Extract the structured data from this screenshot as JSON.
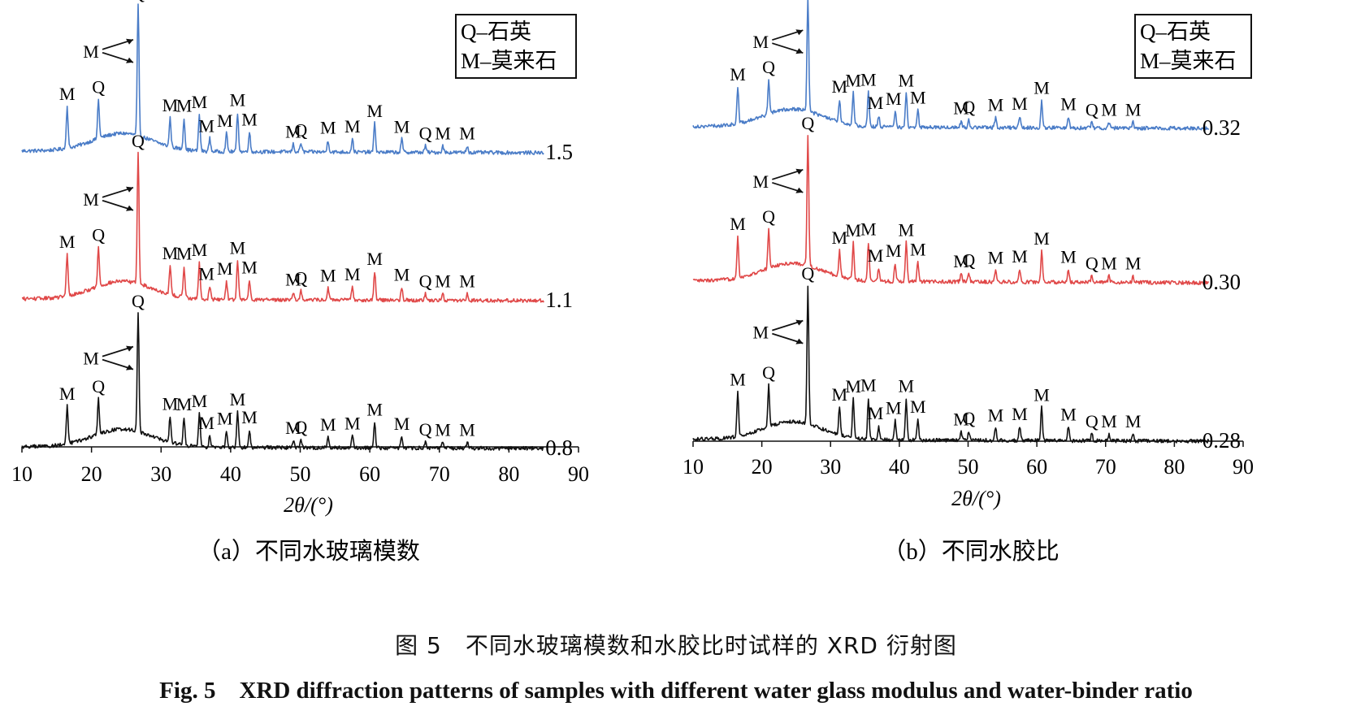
{
  "figure": {
    "caption_zh": "图 5　不同水玻璃模数和水胶比时试样的 XRD 衍射图",
    "caption_en": "Fig. 5　XRD diffraction patterns of samples with different water glass modulus and water-binder ratio"
  },
  "colors": {
    "blue": "#4a7cc7",
    "red": "#e04848",
    "black": "#111111"
  },
  "chart_data": [
    {
      "type": "line",
      "subtitle": "（a）不同水玻璃模数",
      "xlabel": "2θ/(°)",
      "xlim": [
        10,
        90
      ],
      "xticks": [
        "10",
        "20",
        "30",
        "40",
        "50",
        "60",
        "70",
        "80",
        "90"
      ],
      "legend": [
        "Q–石英",
        "M–莫来石"
      ],
      "legend_position": "top-right",
      "series": [
        {
          "name": "1.5",
          "color": "blue"
        },
        {
          "name": "1.1",
          "color": "red"
        },
        {
          "name": "0.8",
          "color": "black"
        }
      ],
      "peaks": [
        {
          "x": 16.5,
          "phase": "M",
          "h": 0.32
        },
        {
          "x": 21.0,
          "phase": "Q",
          "h": 0.3
        },
        {
          "x": 26.7,
          "phase": "Q",
          "h": 1.0
        },
        {
          "x": 31.3,
          "phase": "M",
          "h": 0.22
        },
        {
          "x": 33.3,
          "phase": "M",
          "h": 0.24
        },
        {
          "x": 35.5,
          "phase": "M",
          "h": 0.28
        },
        {
          "x": 37.0,
          "phase": "M",
          "h": 0.1
        },
        {
          "x": 39.4,
          "phase": "M",
          "h": 0.14
        },
        {
          "x": 41.0,
          "phase": "M",
          "h": 0.3
        },
        {
          "x": 42.7,
          "phase": "M",
          "h": 0.15
        },
        {
          "x": 49.0,
          "phase": "M",
          "h": 0.06
        },
        {
          "x": 50.1,
          "phase": "Q",
          "h": 0.07
        },
        {
          "x": 54.0,
          "phase": "M",
          "h": 0.09
        },
        {
          "x": 57.5,
          "phase": "M",
          "h": 0.1
        },
        {
          "x": 60.7,
          "phase": "M",
          "h": 0.22
        },
        {
          "x": 64.6,
          "phase": "M",
          "h": 0.1
        },
        {
          "x": 68.0,
          "phase": "Q",
          "h": 0.05
        },
        {
          "x": 70.5,
          "phase": "M",
          "h": 0.05
        },
        {
          "x": 74.0,
          "phase": "M",
          "h": 0.05
        }
      ],
      "arrow_label": "M"
    },
    {
      "type": "line",
      "subtitle": "（b）不同水胶比",
      "xlabel": "2θ/(°)",
      "xlim": [
        10,
        90
      ],
      "xticks": [
        "10",
        "20",
        "30",
        "40",
        "50",
        "60",
        "70",
        "80",
        "90"
      ],
      "legend": [
        "Q–石英",
        "M–莫来石"
      ],
      "legend_position": "top-right",
      "series": [
        {
          "name": "0.32",
          "color": "blue"
        },
        {
          "name": "0.30",
          "color": "red"
        },
        {
          "name": "0.28",
          "color": "black"
        }
      ],
      "peaks": [
        {
          "x": 16.5,
          "phase": "M",
          "h": 0.32
        },
        {
          "x": 21.0,
          "phase": "Q",
          "h": 0.3
        },
        {
          "x": 26.7,
          "phase": "Q",
          "h": 1.0
        },
        {
          "x": 31.3,
          "phase": "M",
          "h": 0.2
        },
        {
          "x": 33.3,
          "phase": "M",
          "h": 0.28
        },
        {
          "x": 35.5,
          "phase": "M",
          "h": 0.3
        },
        {
          "x": 37.0,
          "phase": "M",
          "h": 0.1
        },
        {
          "x": 39.4,
          "phase": "M",
          "h": 0.14
        },
        {
          "x": 41.0,
          "phase": "M",
          "h": 0.3
        },
        {
          "x": 42.7,
          "phase": "M",
          "h": 0.15
        },
        {
          "x": 49.0,
          "phase": "M",
          "h": 0.06
        },
        {
          "x": 50.1,
          "phase": "Q",
          "h": 0.07
        },
        {
          "x": 54.0,
          "phase": "M",
          "h": 0.09
        },
        {
          "x": 57.5,
          "phase": "M",
          "h": 0.1
        },
        {
          "x": 60.7,
          "phase": "M",
          "h": 0.24
        },
        {
          "x": 64.6,
          "phase": "M",
          "h": 0.1
        },
        {
          "x": 68.0,
          "phase": "Q",
          "h": 0.05
        },
        {
          "x": 70.5,
          "phase": "M",
          "h": 0.05
        },
        {
          "x": 74.0,
          "phase": "M",
          "h": 0.05
        }
      ],
      "arrow_label": "M"
    }
  ]
}
